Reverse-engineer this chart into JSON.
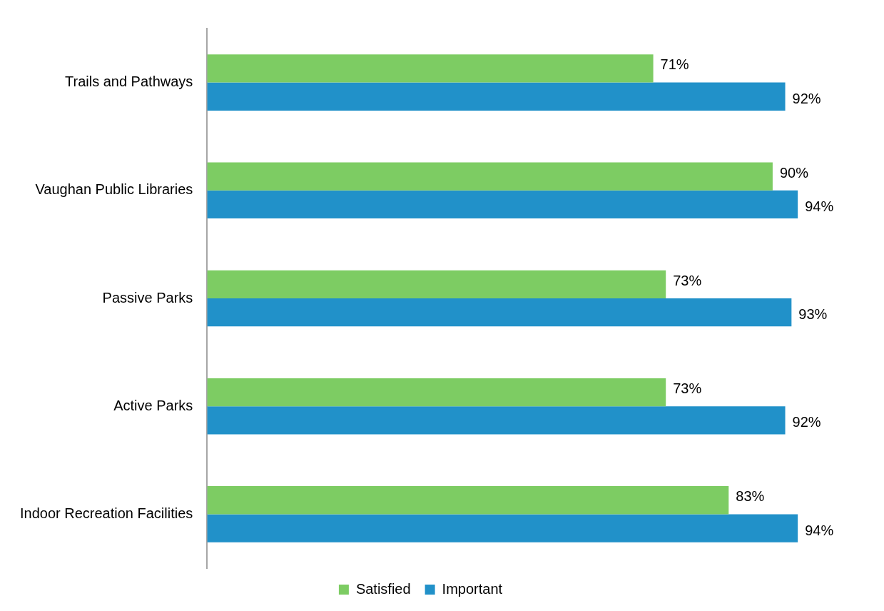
{
  "chart_data": {
    "type": "bar",
    "orientation": "horizontal",
    "categories": [
      "Trails and Pathways",
      "Vaughan Public Libraries",
      "Passive Parks",
      "Active Parks",
      "Indoor Recreation Facilities"
    ],
    "series": [
      {
        "name": "Satisfied",
        "color": "#7dcc63",
        "values": [
          71,
          90,
          73,
          73,
          83
        ],
        "value_labels": [
          "71%",
          "90%",
          "73%",
          "73%",
          "83%"
        ]
      },
      {
        "name": "Important",
        "color": "#2191c9",
        "values": [
          92,
          94,
          93,
          92,
          94
        ],
        "value_labels": [
          "92%",
          "94%",
          "93%",
          "92%",
          "94%"
        ]
      }
    ],
    "legend": "bottom",
    "grid": false,
    "tick_labels": "y"
  }
}
